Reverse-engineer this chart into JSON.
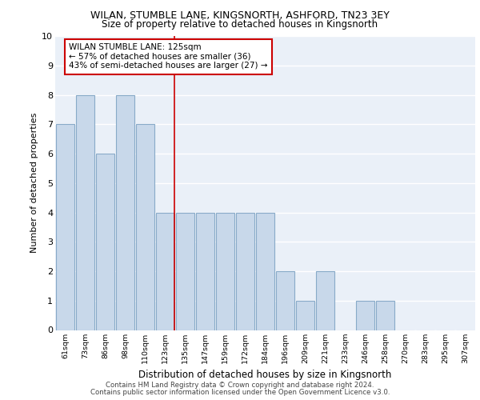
{
  "title1": "WILAN, STUMBLE LANE, KINGSNORTH, ASHFORD, TN23 3EY",
  "title2": "Size of property relative to detached houses in Kingsnorth",
  "xlabel": "Distribution of detached houses by size in Kingsnorth",
  "ylabel": "Number of detached properties",
  "categories": [
    "61sqm",
    "73sqm",
    "86sqm",
    "98sqm",
    "110sqm",
    "123sqm",
    "135sqm",
    "147sqm",
    "159sqm",
    "172sqm",
    "184sqm",
    "196sqm",
    "209sqm",
    "221sqm",
    "233sqm",
    "246sqm",
    "258sqm",
    "270sqm",
    "283sqm",
    "295sqm",
    "307sqm"
  ],
  "values": [
    7,
    8,
    6,
    8,
    7,
    4,
    4,
    4,
    4,
    4,
    4,
    2,
    1,
    2,
    0,
    1,
    1,
    0,
    0,
    0,
    0
  ],
  "bar_color": "#c8d8ea",
  "bar_edge_color": "#88aac8",
  "vline_index": 5,
  "vline_color": "#cc0000",
  "annotation_title": "WILAN STUMBLE LANE: 125sqm",
  "annotation_line1": "← 57% of detached houses are smaller (36)",
  "annotation_line2": "43% of semi-detached houses are larger (27) →",
  "annotation_box_color": "#ffffff",
  "annotation_box_edge": "#cc0000",
  "ylim": [
    0,
    10
  ],
  "yticks": [
    0,
    1,
    2,
    3,
    4,
    5,
    6,
    7,
    8,
    9,
    10
  ],
  "bg_color": "#eaf0f8",
  "grid_color": "#ffffff",
  "footer1": "Contains HM Land Registry data © Crown copyright and database right 2024.",
  "footer2": "Contains public sector information licensed under the Open Government Licence v3.0."
}
